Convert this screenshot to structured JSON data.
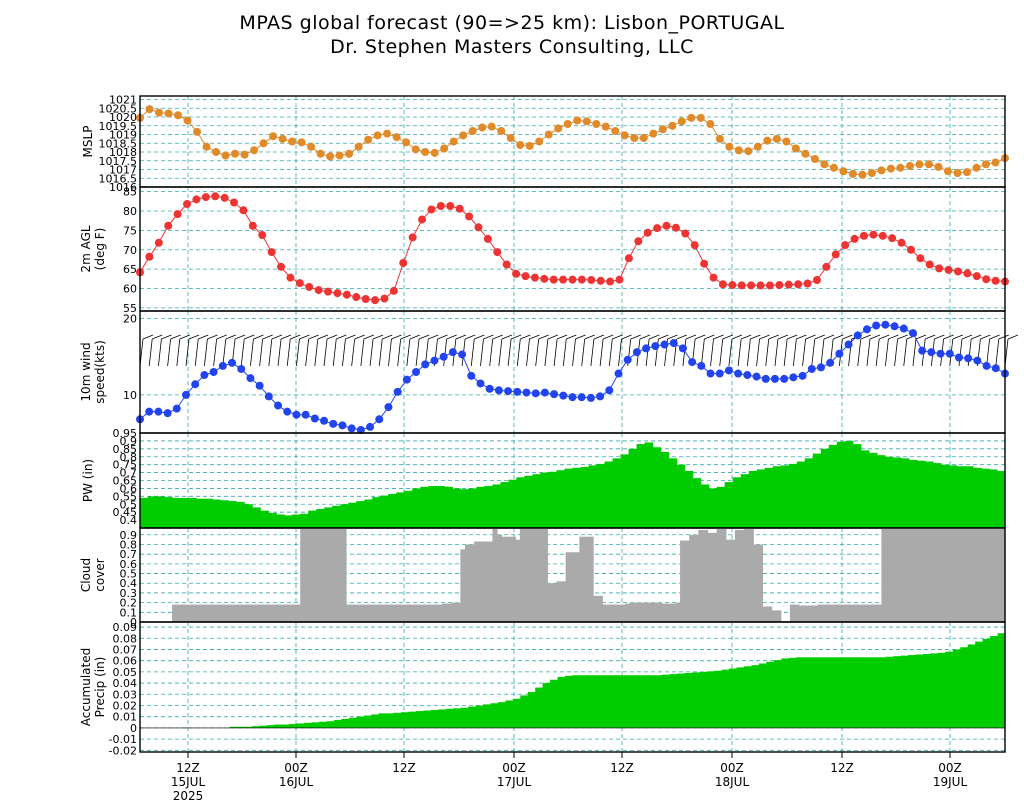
{
  "title": "MPAS global forecast (90=>25 km): Lisbon_PORTUGAL",
  "subtitle": "Dr. Stephen Masters Consulting, LLC",
  "colors": {
    "grid": "#33aaaa",
    "mslp": "#e08a2a",
    "temp": "#ee3333",
    "wind": "#2244ee",
    "barb": "#000000",
    "pw_fill": "#00cc00",
    "cloud_fill": "#aaaaaa",
    "precip_fill": "#00cc00"
  },
  "chart_data": [
    {
      "type": "line",
      "name": "mslp",
      "ylabel": [
        "MSLP"
      ],
      "ylim": [
        1016,
        1021.2
      ],
      "ytick_labels": [
        "1016",
        "1016.5",
        "1017",
        "1017.5",
        "1018",
        "1018.5",
        "1019",
        "1019.5",
        "1020",
        "1020.5",
        "1021"
      ],
      "values": [
        1019.95,
        1020.45,
        1020.25,
        1020.2,
        1020.1,
        1019.8,
        1019.15,
        1018.3,
        1018.0,
        1017.8,
        1017.9,
        1017.85,
        1018.1,
        1018.5,
        1018.9,
        1018.75,
        1018.6,
        1018.55,
        1018.3,
        1017.9,
        1017.75,
        1017.8,
        1017.9,
        1018.3,
        1018.7,
        1018.95,
        1019.05,
        1018.85,
        1018.55,
        1018.15,
        1018.0,
        1017.95,
        1018.2,
        1018.6,
        1018.95,
        1019.2,
        1019.4,
        1019.45,
        1019.2,
        1018.8,
        1018.4,
        1018.35,
        1018.6,
        1019.0,
        1019.35,
        1019.6,
        1019.8,
        1019.75,
        1019.6,
        1019.45,
        1019.2,
        1018.95,
        1018.8,
        1018.8,
        1019.05,
        1019.3,
        1019.5,
        1019.75,
        1019.95,
        1019.95,
        1019.6,
        1018.75,
        1018.3,
        1018.1,
        1018.05,
        1018.3,
        1018.65,
        1018.75,
        1018.6,
        1018.2,
        1017.9,
        1017.6,
        1017.3,
        1017.1,
        1016.9,
        1016.75,
        1016.7,
        1016.8,
        1016.95,
        1017.05,
        1017.1,
        1017.2,
        1017.3,
        1017.3,
        1017.15,
        1016.9,
        1016.8,
        1016.85,
        1017.1,
        1017.3,
        1017.4,
        1017.65
      ]
    },
    {
      "type": "line",
      "name": "2m temperature",
      "ylabel": [
        "2m AGL",
        "(deg F)"
      ],
      "ylim": [
        54.2,
        86.2
      ],
      "ytick_labels": [
        "55",
        "60",
        "65",
        "70",
        "75",
        "80",
        "85"
      ],
      "values": [
        64.2,
        68.2,
        71.8,
        76.2,
        79.2,
        81.8,
        83.0,
        83.6,
        83.8,
        83.4,
        82.2,
        80.2,
        76.2,
        73.8,
        69.4,
        65.6,
        62.8,
        61.4,
        60.4,
        59.6,
        59.2,
        58.8,
        58.4,
        57.8,
        57.3,
        57.0,
        57.4,
        59.4,
        66.6,
        73.2,
        77.8,
        80.4,
        81.3,
        81.3,
        80.6,
        78.6,
        75.8,
        72.8,
        69.4,
        66.2,
        63.8,
        63.2,
        62.8,
        62.5,
        62.3,
        62.3,
        62.3,
        62.3,
        62.2,
        62.0,
        61.8,
        62.3,
        67.8,
        72.2,
        74.4,
        75.6,
        76.2,
        75.7,
        74.2,
        71.2,
        66.4,
        62.8,
        61.1,
        60.9,
        60.8,
        60.8,
        60.8,
        60.8,
        60.9,
        61.0,
        61.1,
        61.3,
        62.2,
        65.6,
        68.8,
        71.2,
        72.8,
        73.6,
        73.9,
        73.6,
        73.0,
        71.8,
        70.0,
        67.8,
        66.2,
        65.2,
        64.8,
        64.4,
        63.9,
        63.2,
        62.4,
        62.0,
        61.8
      ]
    },
    {
      "type": "line",
      "name": "10m wind speed",
      "ylabel": [
        "10m wind",
        "speed(kts)"
      ],
      "ylim": [
        5,
        21
      ],
      "ytick_labels": [
        "10",
        "20"
      ],
      "values": [
        6.8,
        7.8,
        7.8,
        7.6,
        8.2,
        10.0,
        11.4,
        12.6,
        13.0,
        13.8,
        14.2,
        13.4,
        12.2,
        11.2,
        9.8,
        8.6,
        7.8,
        7.4,
        7.4,
        6.9,
        6.6,
        6.2,
        6.0,
        5.6,
        5.4,
        5.8,
        6.8,
        8.4,
        10.4,
        12.0,
        13.0,
        14.0,
        14.5,
        15.0,
        15.6,
        15.3,
        12.5,
        11.5,
        10.8,
        10.6,
        10.5,
        10.4,
        10.3,
        10.2,
        10.3,
        10.1,
        9.9,
        9.7,
        9.7,
        9.6,
        9.8,
        10.6,
        12.8,
        14.6,
        15.6,
        16.1,
        16.4,
        16.6,
        16.8,
        16.1,
        14.3,
        13.8,
        12.8,
        12.8,
        13.2,
        12.8,
        12.6,
        12.4,
        12.1,
        12.1,
        12.1,
        12.3,
        12.5,
        13.4,
        13.6,
        14.2,
        15.4,
        16.6,
        17.8,
        18.6,
        19.1,
        19.2,
        19.0,
        18.7,
        18.1,
        15.8,
        15.6,
        15.4,
        15.4,
        14.9,
        14.8,
        14.5,
        13.8,
        13.5,
        12.8
      ]
    },
    {
      "type": "area",
      "name": "precipitable water",
      "ylabel": [
        "PW (in)"
      ],
      "ylim": [
        0.35,
        0.95
      ],
      "ytick_labels": [
        "0.4",
        "0.45",
        "0.5",
        "0.55",
        "0.6",
        "0.65",
        "0.7",
        "0.75",
        "0.8",
        "0.85",
        "0.9",
        "0.95"
      ],
      "values": [
        0.54,
        0.55,
        0.55,
        0.545,
        0.54,
        0.54,
        0.54,
        0.535,
        0.535,
        0.53,
        0.525,
        0.52,
        0.515,
        0.5,
        0.48,
        0.46,
        0.445,
        0.435,
        0.43,
        0.435,
        0.44,
        0.46,
        0.47,
        0.48,
        0.49,
        0.5,
        0.51,
        0.52,
        0.53,
        0.545,
        0.555,
        0.565,
        0.575,
        0.585,
        0.6,
        0.61,
        0.615,
        0.615,
        0.61,
        0.6,
        0.595,
        0.6,
        0.61,
        0.615,
        0.625,
        0.64,
        0.655,
        0.67,
        0.68,
        0.69,
        0.7,
        0.705,
        0.715,
        0.725,
        0.73,
        0.735,
        0.745,
        0.755,
        0.77,
        0.79,
        0.815,
        0.85,
        0.88,
        0.89,
        0.86,
        0.83,
        0.79,
        0.75,
        0.71,
        0.665,
        0.625,
        0.6,
        0.61,
        0.64,
        0.67,
        0.69,
        0.71,
        0.72,
        0.73,
        0.74,
        0.745,
        0.755,
        0.77,
        0.79,
        0.82,
        0.85,
        0.875,
        0.895,
        0.9,
        0.88,
        0.84,
        0.825,
        0.81,
        0.8,
        0.795,
        0.79,
        0.78,
        0.775,
        0.77,
        0.76,
        0.75,
        0.745,
        0.74,
        0.74,
        0.73,
        0.725,
        0.72,
        0.71
      ]
    },
    {
      "type": "bar",
      "name": "cloud cover",
      "ylabel": [
        "Cloud",
        "cover"
      ],
      "ylim": [
        0,
        0.97
      ],
      "ytick_labels": [
        "0",
        "0.1",
        "0.2",
        "0.3",
        "0.4",
        "0.5",
        "0.6",
        "0.7",
        "0.8",
        "0.9"
      ],
      "values": [
        0,
        0,
        0,
        0,
        0,
        0,
        0,
        0.18,
        0.18,
        0.18,
        0.18,
        0.18,
        0.18,
        0.18,
        0.18,
        0.18,
        0.18,
        0.18,
        0.18,
        0.18,
        0.18,
        0.18,
        0.18,
        0.18,
        0.18,
        0.18,
        0.18,
        0.18,
        0.18,
        0.18,
        0.18,
        0.18,
        0.18,
        0.18,
        0.18,
        1,
        1,
        1,
        1,
        1,
        1,
        1,
        1,
        1,
        1,
        0.18,
        0.18,
        0.18,
        0.18,
        0.18,
        0.18,
        0.18,
        0.18,
        0.18,
        0.18,
        0.18,
        0.18,
        0.18,
        0.18,
        0.18,
        0.18,
        0.18,
        0.18,
        0.18,
        0.18,
        0.18,
        0.19,
        0.19,
        0.2,
        0.2,
        0.75,
        0.8,
        0.8,
        0.83,
        0.83,
        0.83,
        0.83,
        0.98,
        0.9,
        0.88,
        0.88,
        0.88,
        0.85,
        0.97,
        0.97,
        0.97,
        0.97,
        0.97,
        0.97,
        0.4,
        0.4,
        0.42,
        0.42,
        0.72,
        0.72,
        0.72,
        0.88,
        0.88,
        0.88,
        0.27,
        0.27,
        0.18,
        0.18,
        0.18,
        0.18,
        0.18,
        0.19,
        0.2,
        0.2,
        0.2,
        0.2,
        0.2,
        0.2,
        0.2,
        0.19,
        0.19,
        0.19,
        0.2,
        0.84,
        0.84,
        0.9,
        0.9,
        0.95,
        0.95,
        0.92,
        0.92,
        0.98,
        0.98,
        0.85,
        0.85,
        0.95,
        0.95,
        0.97,
        0.97,
        0.8,
        0.8,
        0.16,
        0.16,
        0.12,
        0.12,
        0.01,
        0.01,
        0.18,
        0.18,
        0.17,
        0.17,
        0.17,
        0.17,
        0.18,
        0.18,
        0.18,
        0.18,
        0.18,
        0.18,
        0.18,
        0.18,
        0.18,
        0.18,
        0.18,
        0.18,
        0.18,
        0.18,
        1,
        1,
        1,
        1,
        1,
        1,
        1,
        1,
        1,
        1,
        1,
        1,
        1,
        1,
        1,
        1,
        1,
        1,
        1,
        1,
        1,
        1,
        1,
        1,
        1,
        1,
        1
      ]
    },
    {
      "type": "area",
      "name": "accumulated precip",
      "ylabel": [
        "Accumulated",
        "Precip (in)"
      ],
      "ylim": [
        -0.0215,
        0.0945
      ],
      "ytick_labels": [
        "-0.02",
        "-0.01",
        "0",
        "0.01",
        "0.02",
        "0.03",
        "0.04",
        "0.05",
        "0.06",
        "0.07",
        "0.08",
        "0.09"
      ],
      "values": [
        0,
        0,
        0,
        0,
        0,
        0,
        0,
        0,
        0,
        0,
        0,
        0,
        0.001,
        0.001,
        0.001,
        0.0015,
        0.002,
        0.0025,
        0.003,
        0.003,
        0.0035,
        0.004,
        0.0045,
        0.005,
        0.0055,
        0.006,
        0.007,
        0.008,
        0.009,
        0.01,
        0.011,
        0.012,
        0.013,
        0.013,
        0.0135,
        0.014,
        0.0145,
        0.015,
        0.0155,
        0.016,
        0.0165,
        0.017,
        0.0175,
        0.018,
        0.019,
        0.02,
        0.021,
        0.022,
        0.023,
        0.0245,
        0.026,
        0.029,
        0.032,
        0.036,
        0.04,
        0.043,
        0.0455,
        0.0465,
        0.047,
        0.047,
        0.047,
        0.047,
        0.047,
        0.047,
        0.047,
        0.047,
        0.047,
        0.047,
        0.047,
        0.047,
        0.0475,
        0.048,
        0.0485,
        0.049,
        0.0495,
        0.05,
        0.0505,
        0.051,
        0.052,
        0.053,
        0.054,
        0.055,
        0.056,
        0.0575,
        0.059,
        0.0605,
        0.062,
        0.0625,
        0.063,
        0.063,
        0.063,
        0.063,
        0.063,
        0.063,
        0.063,
        0.063,
        0.063,
        0.063,
        0.063,
        0.063,
        0.0635,
        0.064,
        0.0645,
        0.065,
        0.0655,
        0.066,
        0.0665,
        0.067,
        0.068,
        0.07,
        0.072,
        0.0745,
        0.077,
        0.0795,
        0.082,
        0.0845
      ]
    }
  ],
  "time_axis": {
    "tick_labels": [
      "12Z",
      "00Z",
      "12Z",
      "00Z",
      "12Z",
      "00Z",
      "12Z",
      "00Z"
    ],
    "date_labels": [
      "15JUL",
      "16JUL",
      "17JUL",
      "18JUL",
      "19JUL"
    ],
    "year_label": "2025"
  }
}
